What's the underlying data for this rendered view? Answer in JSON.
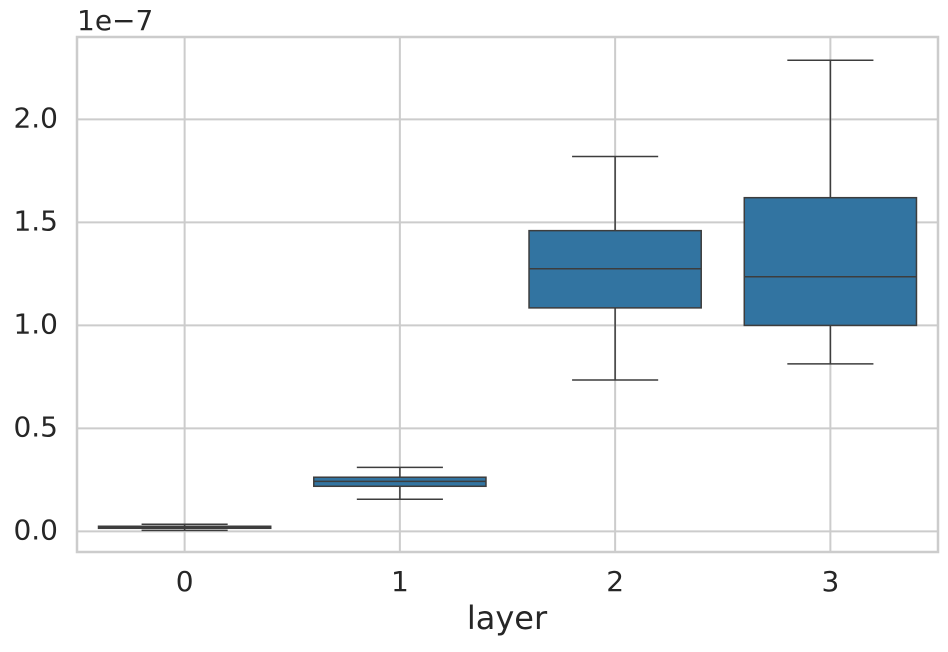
{
  "chart_data": {
    "type": "box",
    "x_label": "layer",
    "offset_label": "1e−7",
    "categories": [
      "0",
      "1",
      "2",
      "3"
    ],
    "boxes": [
      {
        "low": 0.005,
        "q1": 0.015,
        "median": 0.02,
        "q3": 0.025,
        "high": 0.035
      },
      {
        "low": 0.156,
        "q1": 0.219,
        "median": 0.243,
        "q3": 0.263,
        "high": 0.311
      },
      {
        "low": 0.735,
        "q1": 1.085,
        "median": 1.275,
        "q3": 1.46,
        "high": 1.82
      },
      {
        "low": 0.813,
        "q1": 1.0,
        "median": 1.236,
        "q3": 1.62,
        "high": 2.287
      }
    ],
    "color": "#3274a1",
    "ylim": [
      -0.1,
      2.4
    ],
    "yticks": [
      {
        "value": 0,
        "label": "0.0"
      },
      {
        "value": 0.5,
        "label": "0.5"
      },
      {
        "value": 1,
        "label": "1.0"
      },
      {
        "value": 1.5,
        "label": "1.5"
      },
      {
        "value": 2,
        "label": "2.0"
      }
    ],
    "grid": true
  }
}
